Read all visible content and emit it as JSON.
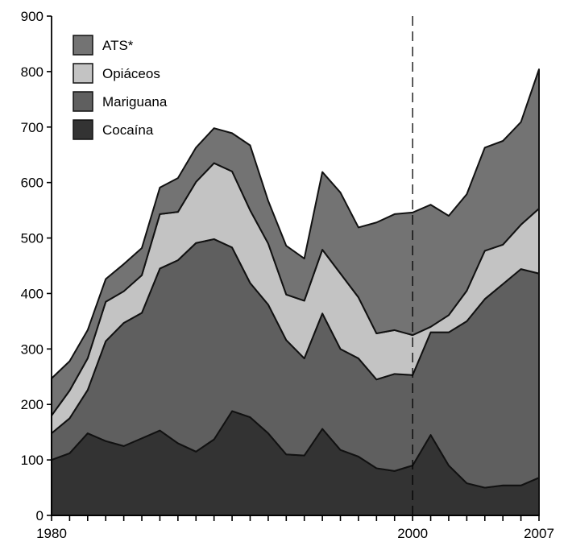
{
  "chart_data": {
    "type": "area",
    "stacked": true,
    "title": "",
    "xlabel": "",
    "ylabel": "",
    "x": [
      1980,
      1981,
      1982,
      1983,
      1984,
      1985,
      1986,
      1987,
      1988,
      1989,
      1990,
      1991,
      1992,
      1993,
      1994,
      1995,
      1996,
      1997,
      1998,
      1999,
      2000,
      2001,
      2002,
      2003,
      2004,
      2005,
      2006,
      2007
    ],
    "x_tick_labels": [
      {
        "x": 1980,
        "label": "1980"
      },
      {
        "x": 2000,
        "label": "2000"
      },
      {
        "x": 2007,
        "label": "2007"
      }
    ],
    "ylim": [
      0,
      900
    ],
    "yticks": [
      0,
      100,
      200,
      300,
      400,
      500,
      600,
      700,
      800,
      900
    ],
    "vertical_reference_line": {
      "x": 2000,
      "style": "dashed"
    },
    "legend_position": "top-left",
    "series": [
      {
        "name": "Cocaína",
        "color": "#333333",
        "values": [
          100,
          112,
          148,
          134,
          125,
          139,
          153,
          130,
          115,
          137,
          188,
          177,
          148,
          110,
          108,
          156,
          118,
          106,
          85,
          80,
          90,
          145,
          90,
          58,
          50,
          54,
          54,
          68
        ]
      },
      {
        "name": "Mariguana",
        "color": "#5f5f5f",
        "values": [
          48,
          63,
          78,
          180,
          222,
          226,
          292,
          330,
          376,
          361,
          295,
          242,
          232,
          206,
          175,
          208,
          182,
          177,
          160,
          175,
          163,
          185,
          240,
          292,
          340,
          363,
          390,
          368
        ]
      },
      {
        "name": "Opiáceos",
        "color": "#c3c3c3",
        "values": [
          32,
          50,
          57,
          71,
          57,
          68,
          98,
          87,
          110,
          137,
          137,
          131,
          110,
          82,
          104,
          115,
          136,
          110,
          83,
          79,
          72,
          10,
          31,
          55,
          87,
          71,
          80,
          117
        ]
      },
      {
        "name": "ATS*",
        "color": "#737373",
        "values": [
          67,
          53,
          51,
          41,
          49,
          49,
          48,
          61,
          62,
          63,
          69,
          117,
          77,
          88,
          76,
          140,
          146,
          126,
          200,
          209,
          221,
          220,
          179,
          174,
          186,
          187,
          185,
          251
        ]
      }
    ]
  }
}
